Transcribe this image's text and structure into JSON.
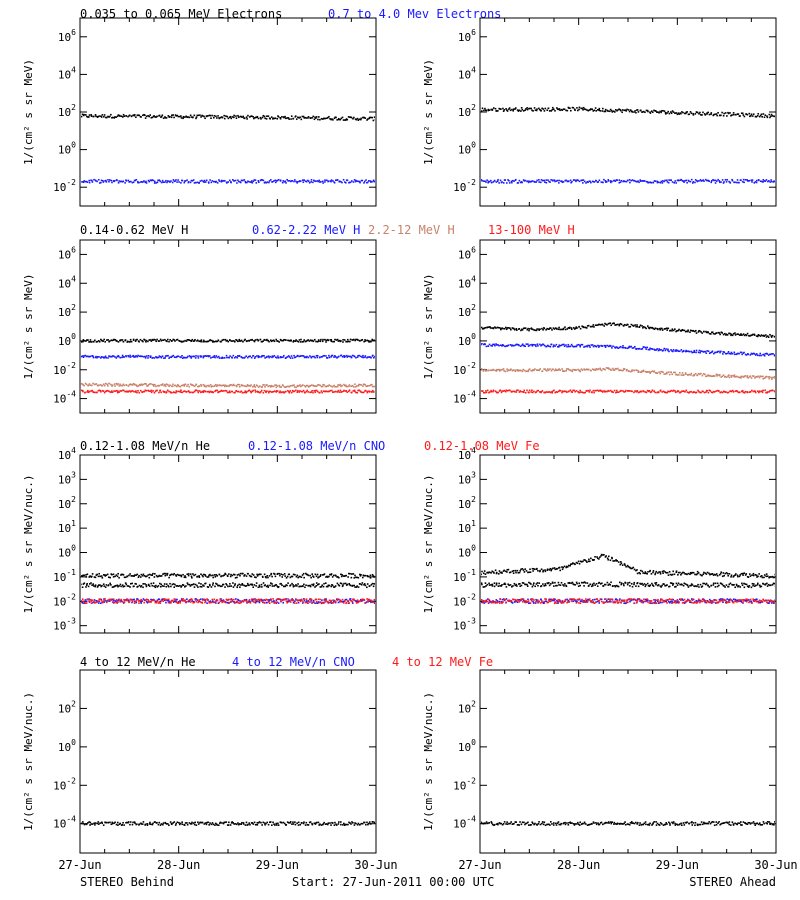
{
  "colors": {
    "black": "#000000",
    "blue": "#1a1aff",
    "tan": "#c8826a",
    "red": "#ff1a1a",
    "axis": "#000000"
  },
  "rows": [
    {
      "legend": [
        {
          "text": "0.035 to 0.065 MeV Electrons",
          "color": "black"
        },
        {
          "text": "0.7 to 4.0 Mev Electrons",
          "color": "blue"
        }
      ]
    },
    {
      "legend": [
        {
          "text": "0.14-0.62 MeV H",
          "color": "black"
        },
        {
          "text": "0.62-2.22 MeV H",
          "color": "blue"
        },
        {
          "text": "2.2-12 MeV H",
          "color": "tan"
        },
        {
          "text": "13-100 MeV H",
          "color": "red"
        }
      ]
    },
    {
      "legend": [
        {
          "text": "0.12-1.08 MeV/n He",
          "color": "black"
        },
        {
          "text": "0.12-1.08 MeV/n CNO",
          "color": "blue"
        },
        {
          "text": "0.12-1.08 MeV Fe",
          "color": "red"
        }
      ]
    },
    {
      "legend": [
        {
          "text": "4 to 12 MeV/n He",
          "color": "black"
        },
        {
          "text": "4 to 12 MeV/n CNO",
          "color": "blue"
        },
        {
          "text": "4 to 12 MeV Fe",
          "color": "red"
        }
      ]
    }
  ],
  "footer": {
    "left": "STEREO Behind",
    "center": "Start: 27-Jun-2011 00:00 UTC",
    "right": "STEREO Ahead",
    "x_ticks": [
      "27-Jun",
      "28-Jun",
      "29-Jun",
      "30-Jun"
    ]
  },
  "chart_data": [
    {
      "type": "scatter",
      "row": 0,
      "col": 0,
      "ylabel": "1/(cm² s sr MeV)",
      "yscale": "log",
      "ylim": [
        0.001,
        10000000
      ],
      "ytick_exps": [
        -2,
        0,
        2,
        4,
        6
      ],
      "xlim": [
        0,
        3
      ],
      "series": [
        {
          "color": "black",
          "points": [
            [
              0,
              60
            ],
            [
              1,
              55
            ],
            [
              2,
              50
            ],
            [
              3,
              42
            ]
          ]
        },
        {
          "color": "blue",
          "points": [
            [
              0,
              0.02
            ],
            [
              1,
              0.02
            ],
            [
              2,
              0.02
            ],
            [
              3,
              0.02
            ]
          ]
        }
      ]
    },
    {
      "type": "scatter",
      "row": 0,
      "col": 1,
      "ylabel": "1/(cm² s sr MeV)",
      "yscale": "log",
      "ylim": [
        0.001,
        10000000
      ],
      "ytick_exps": [
        -2,
        0,
        2,
        4,
        6
      ],
      "xlim": [
        0,
        3
      ],
      "series": [
        {
          "color": "black",
          "points": [
            [
              0,
              130
            ],
            [
              1,
              140
            ],
            [
              2,
              90
            ],
            [
              3,
              60
            ]
          ]
        },
        {
          "color": "blue",
          "points": [
            [
              0,
              0.02
            ],
            [
              1,
              0.02
            ],
            [
              2,
              0.02
            ],
            [
              3,
              0.02
            ]
          ]
        }
      ]
    },
    {
      "type": "scatter",
      "row": 1,
      "col": 0,
      "ylabel": "1/(cm² s sr MeV)",
      "yscale": "log",
      "ylim": [
        1e-05,
        10000000
      ],
      "ytick_exps": [
        -4,
        -2,
        0,
        2,
        4,
        6
      ],
      "xlim": [
        0,
        3
      ],
      "series": [
        {
          "color": "black",
          "points": [
            [
              0,
              1.0
            ],
            [
              1,
              1.0
            ],
            [
              2,
              1.0
            ],
            [
              3,
              1.0
            ]
          ]
        },
        {
          "color": "blue",
          "points": [
            [
              0,
              0.08
            ],
            [
              1,
              0.075
            ],
            [
              2,
              0.075
            ],
            [
              3,
              0.08
            ]
          ]
        },
        {
          "color": "tan",
          "points": [
            [
              0,
              0.0009
            ],
            [
              1,
              0.0008
            ],
            [
              2,
              0.0007
            ],
            [
              3,
              0.0008
            ]
          ]
        },
        {
          "color": "red",
          "points": [
            [
              0,
              0.0003
            ],
            [
              1,
              0.0003
            ],
            [
              2,
              0.0003
            ],
            [
              3,
              0.0003
            ]
          ]
        }
      ]
    },
    {
      "type": "scatter",
      "row": 1,
      "col": 1,
      "ylabel": "1/(cm² s sr MeV)",
      "yscale": "log",
      "ylim": [
        1e-05,
        10000000
      ],
      "ytick_exps": [
        -4,
        -2,
        0,
        2,
        4,
        6
      ],
      "xlim": [
        0,
        3
      ],
      "series": [
        {
          "color": "black",
          "points": [
            [
              0,
              8
            ],
            [
              0.5,
              6
            ],
            [
              1,
              8
            ],
            [
              1.3,
              14
            ],
            [
              1.6,
              10
            ],
            [
              2,
              5
            ],
            [
              2.5,
              3
            ],
            [
              3,
              2
            ]
          ]
        },
        {
          "color": "blue",
          "points": [
            [
              0,
              0.5
            ],
            [
              1,
              0.45
            ],
            [
              1.5,
              0.35
            ],
            [
              2,
              0.2
            ],
            [
              3,
              0.1
            ]
          ]
        },
        {
          "color": "tan",
          "points": [
            [
              0,
              0.009
            ],
            [
              1,
              0.009
            ],
            [
              1.3,
              0.011
            ],
            [
              2,
              0.005
            ],
            [
              3,
              0.0025
            ]
          ]
        },
        {
          "color": "red",
          "points": [
            [
              0,
              0.0003
            ],
            [
              1,
              0.0003
            ],
            [
              2,
              0.0003
            ],
            [
              3,
              0.0003
            ]
          ]
        }
      ]
    },
    {
      "type": "scatter",
      "row": 2,
      "col": 0,
      "ylabel": "1/(cm² s sr MeV/nuc.)",
      "yscale": "log",
      "ylim": [
        0.0005,
        10000
      ],
      "ytick_exps": [
        -3,
        -2,
        -1,
        0,
        1,
        2,
        3,
        4
      ],
      "xlim": [
        0,
        3
      ],
      "series": [
        {
          "color": "black",
          "points": [
            [
              0,
              0.045
            ],
            [
              1,
              0.045
            ],
            [
              2,
              0.045
            ],
            [
              3,
              0.045
            ]
          ]
        },
        {
          "color": "black",
          "points": [
            [
              0,
              0.11
            ],
            [
              1,
              0.11
            ],
            [
              2,
              0.11
            ],
            [
              3,
              0.11
            ]
          ]
        },
        {
          "color": "blue",
          "points": [
            [
              0,
              0.01
            ],
            [
              1,
              0.01
            ],
            [
              2,
              0.01
            ],
            [
              3,
              0.01
            ]
          ]
        },
        {
          "color": "red",
          "points": [
            [
              0,
              0.01
            ],
            [
              1,
              0.01
            ],
            [
              2,
              0.01
            ],
            [
              3,
              0.01
            ]
          ]
        }
      ]
    },
    {
      "type": "scatter",
      "row": 2,
      "col": 1,
      "ylabel": "1/(cm² s sr MeV/nuc.)",
      "yscale": "log",
      "ylim": [
        0.0005,
        10000
      ],
      "ytick_exps": [
        -3,
        -2,
        -1,
        0,
        1,
        2,
        3,
        4
      ],
      "xlim": [
        0,
        3
      ],
      "series": [
        {
          "color": "black",
          "points": [
            [
              0,
              0.045
            ],
            [
              1,
              0.05
            ],
            [
              2,
              0.045
            ],
            [
              3,
              0.045
            ]
          ]
        },
        {
          "color": "black",
          "points": [
            [
              0,
              0.15
            ],
            [
              0.8,
              0.2
            ],
            [
              1.1,
              0.5
            ],
            [
              1.25,
              0.7
            ],
            [
              1.4,
              0.4
            ],
            [
              1.6,
              0.15
            ],
            [
              3,
              0.11
            ]
          ]
        },
        {
          "color": "blue",
          "points": [
            [
              0,
              0.01
            ],
            [
              1,
              0.01
            ],
            [
              2,
              0.01
            ],
            [
              3,
              0.01
            ]
          ]
        },
        {
          "color": "red",
          "points": [
            [
              0,
              0.01
            ],
            [
              1,
              0.01
            ],
            [
              2,
              0.01
            ],
            [
              3,
              0.01
            ]
          ]
        }
      ]
    },
    {
      "type": "scatter",
      "row": 3,
      "col": 0,
      "ylabel": "1/(cm² s sr MeV/nuc.)",
      "yscale": "log",
      "ylim": [
        3e-06,
        10000
      ],
      "ytick_exps": [
        -4,
        -2,
        0,
        2
      ],
      "xlim": [
        0,
        3
      ],
      "series": [
        {
          "color": "black",
          "points": [
            [
              0,
              0.0001
            ],
            [
              1,
              0.0001
            ],
            [
              2,
              0.0001
            ],
            [
              3,
              0.0001
            ]
          ]
        }
      ]
    },
    {
      "type": "scatter",
      "row": 3,
      "col": 1,
      "ylabel": "1/(cm² s sr MeV/nuc.)",
      "yscale": "log",
      "ylim": [
        3e-06,
        10000
      ],
      "ytick_exps": [
        -4,
        -2,
        0,
        2
      ],
      "xlim": [
        0,
        3
      ],
      "series": [
        {
          "color": "black",
          "points": [
            [
              0,
              0.0001
            ],
            [
              1,
              0.0001
            ],
            [
              2,
              0.0001
            ],
            [
              3,
              0.0001
            ]
          ]
        }
      ]
    }
  ]
}
